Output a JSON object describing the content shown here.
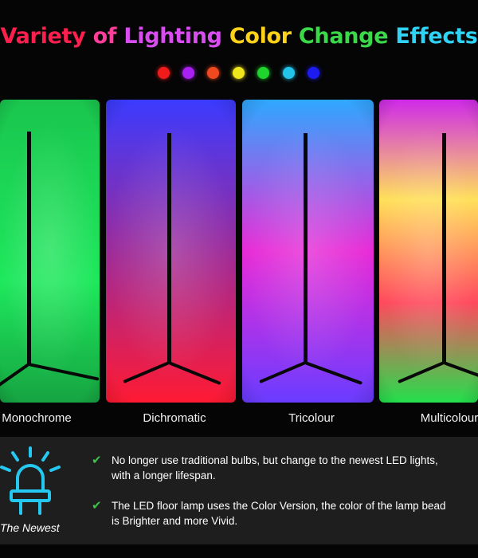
{
  "title": {
    "words": [
      {
        "text": "Variety",
        "color": "#ff1f4e"
      },
      {
        "text": "of",
        "color": "#ff3d9a"
      },
      {
        "text": "Lighting",
        "color": "#d94cf0"
      },
      {
        "text": "Color",
        "color": "#ffd21a"
      },
      {
        "text": "Change",
        "color": "#3bd84a"
      },
      {
        "text": "Effects",
        "color": "#2ed3f5"
      }
    ]
  },
  "color_dots": [
    {
      "name": "red",
      "color": "#f21b1b"
    },
    {
      "name": "purple",
      "color": "#a920f2"
    },
    {
      "name": "orange",
      "color": "#f0491f"
    },
    {
      "name": "yellow",
      "color": "#f0e61c"
    },
    {
      "name": "green",
      "color": "#1fd42c"
    },
    {
      "name": "cyan",
      "color": "#22c4ea"
    },
    {
      "name": "blue",
      "color": "#1c1cf0"
    }
  ],
  "lamps": [
    {
      "label": "Monochrome",
      "colors": [
        "#1ee85c"
      ]
    },
    {
      "label": "Dichromatic",
      "colors": [
        "#3b3bff",
        "#ff1a33"
      ]
    },
    {
      "label": "Tricolour",
      "colors": [
        "#2ea8ff",
        "#e82bd6",
        "#6a3cff"
      ]
    },
    {
      "label": "Multicolour",
      "colors": [
        "#cf2ae8",
        "#ffe05a",
        "#ff4a5e",
        "#23e04c"
      ]
    }
  ],
  "badge": {
    "label": "The Newest",
    "icon": "led-bulb-icon",
    "icon_color": "#25c8f0"
  },
  "features": [
    {
      "check": "✔",
      "lines": [
        "No longer use traditional bulbs, but change to the newest LED lights,",
        "with a longer lifespan."
      ]
    },
    {
      "check": "✔",
      "lines": [
        "The LED floor lamp uses the Color Version, the color of the lamp bead",
        "is Brighter and more Vivid."
      ]
    }
  ]
}
